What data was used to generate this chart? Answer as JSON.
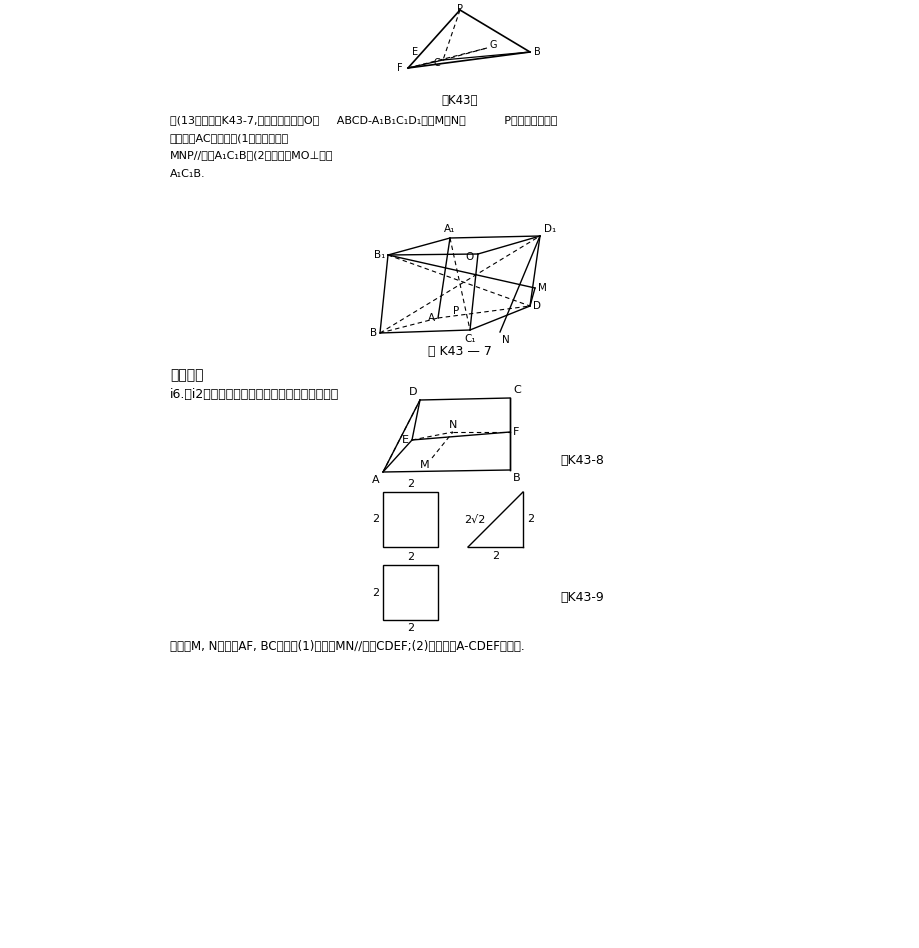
{
  "background_color": "#ffffff",
  "fig1_caption": "图K43翌",
  "problem_text_line1": "．(13分）如图K43-7,在正方体中点，O品     ABCD-A₁B₁C₁D₁中，M、N、           P分别为所在边的",
  "problem_text_line2": "面对浦线AC的中点．(1）求证：平面",
  "problem_text_line3": "MNP∕∕平面A₁C₁B；(2）求证：MO⊥平面",
  "problem_text_line4": "A₁C₁B.",
  "fig7_caption": "图 K43 — 7",
  "section_title": "难点突破",
  "problem2_text": "i6.（i2分）一个多面体的直观图和三视图如下：",
  "fig8_caption": "图K43-8",
  "fig9_caption": "图K43-9",
  "bottom_text": "（其中M, N分别是AF, BC中点）(1)求证：MN∕∕平面CDEF;(2)求多面体A-CDEF的体积."
}
